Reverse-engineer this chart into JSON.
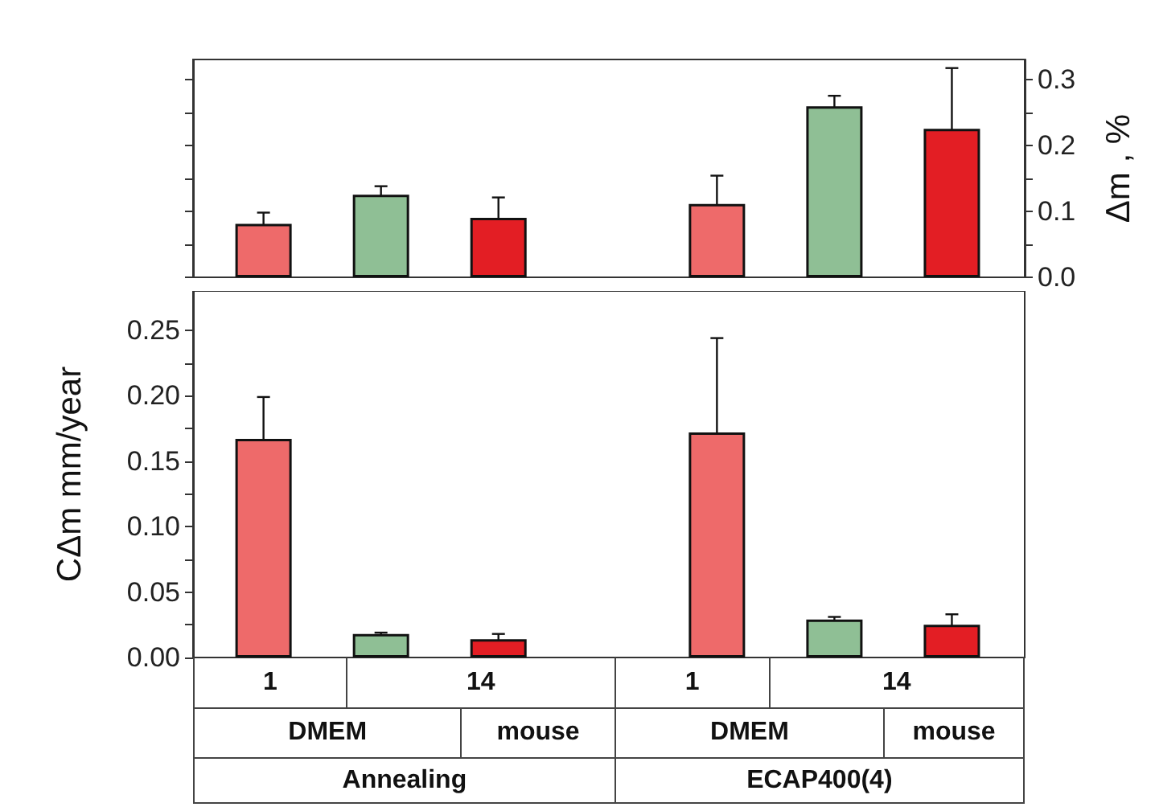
{
  "chart_data": [
    {
      "type": "bar",
      "categories": [
        null,
        null,
        null,
        null,
        null,
        null
      ],
      "ylabel": "Δm , %",
      "ylim": [
        0,
        0.33
      ],
      "yticks": [
        {
          "value": 0,
          "label": "0.0"
        },
        {
          "value": 0.05,
          "label": null
        },
        {
          "value": 0.1,
          "label": "0.1"
        },
        {
          "value": 0.15,
          "label": null
        },
        {
          "value": 0.2,
          "label": "0.2"
        },
        {
          "value": 0.25,
          "label": null
        },
        {
          "value": 0.3,
          "label": "0.3"
        }
      ],
      "series": [
        {
          "colors": [
            "#ee6a6a",
            "#8fbf95",
            "#e31e24",
            "#ee6a6a",
            "#8fbf95",
            "#e31e24"
          ],
          "values": [
            0.081,
            0.125,
            0.09,
            0.111,
            0.259,
            0.225
          ],
          "errors": [
            0.017,
            0.013,
            0.031,
            0.043,
            0.016,
            0.092
          ]
        }
      ]
    },
    {
      "type": "bar",
      "categories": [
        null,
        null,
        null,
        null,
        null,
        null
      ],
      "ylabel": "CΔm mm/year",
      "ylim": [
        0,
        0.28
      ],
      "yticks": [
        {
          "value": 0,
          "label": "0.00"
        },
        {
          "value": 0.025,
          "label": null
        },
        {
          "value": 0.05,
          "label": "0.05"
        },
        {
          "value": 0.075,
          "label": null
        },
        {
          "value": 0.1,
          "label": "0.10"
        },
        {
          "value": 0.125,
          "label": null
        },
        {
          "value": 0.15,
          "label": "0.15"
        },
        {
          "value": 0.175,
          "label": null
        },
        {
          "value": 0.2,
          "label": "0.20"
        },
        {
          "value": 0.225,
          "label": null
        },
        {
          "value": 0.25,
          "label": "0.25"
        }
      ],
      "series": [
        {
          "colors": [
            "#ee6a6a",
            "#8fbf95",
            "#e31e24",
            "#ee6a6a",
            "#8fbf95",
            "#e31e24"
          ],
          "values": [
            0.167,
            0.018,
            0.014,
            0.172,
            0.029,
            0.025
          ],
          "errors": [
            0.032,
            0.001,
            0.004,
            0.072,
            0.002,
            0.008
          ]
        }
      ],
      "annotations": [
        "1",
        "14",
        "1",
        "14",
        "DMEM",
        "mouse",
        "DMEM",
        "mouse",
        "Annealing",
        "ECAP400(4)"
      ],
      "grid": false
    }
  ]
}
